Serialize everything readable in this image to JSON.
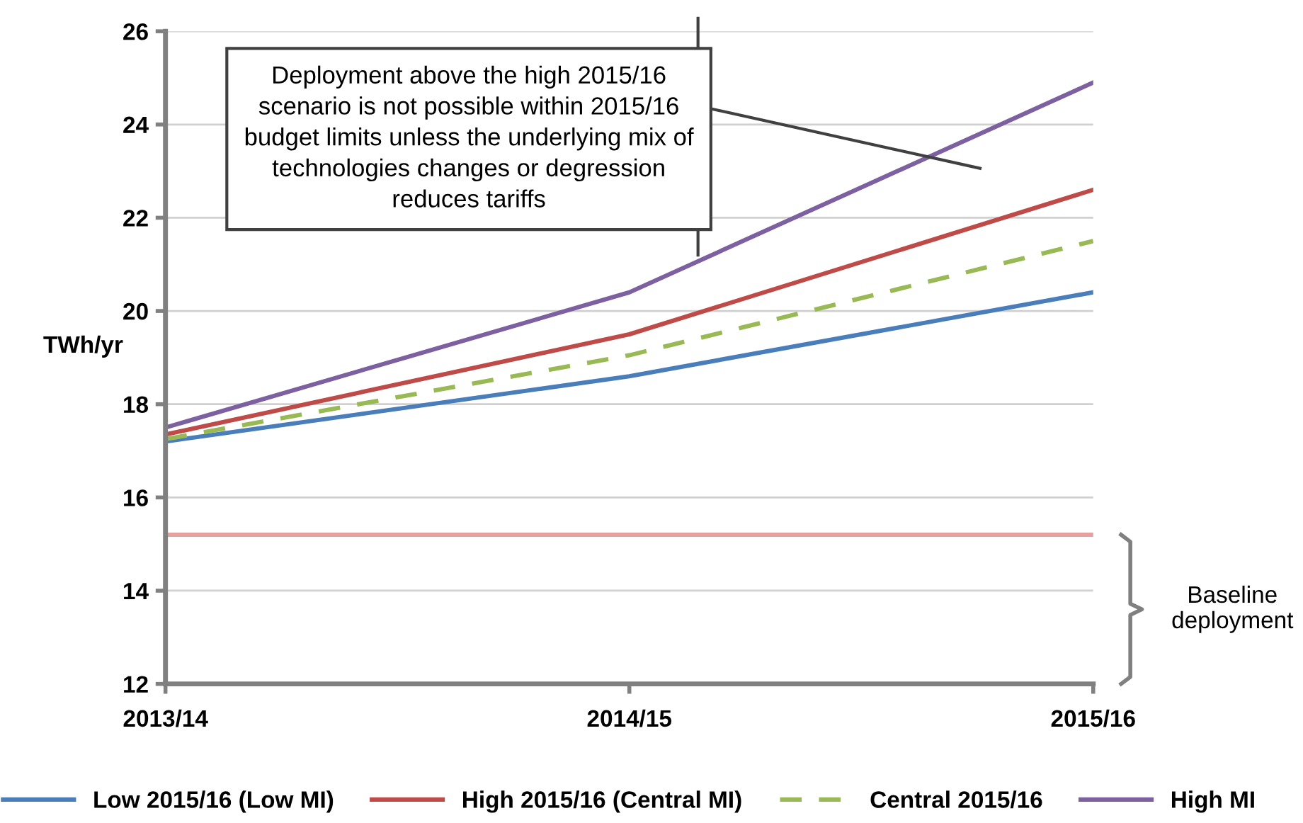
{
  "chart_data": {
    "type": "line",
    "ylabel": "TWh/yr",
    "categories": [
      "2013/14",
      "2014/15",
      "2015/16"
    ],
    "ylim": [
      12,
      26
    ],
    "yticks": [
      12,
      14,
      16,
      18,
      20,
      22,
      24,
      26
    ],
    "grid": "y",
    "legend": "bottom",
    "marker": "none",
    "series": [
      {
        "name": "Low 2015/16 (Low MI)",
        "color": "#4a7ebb",
        "values": [
          17.2,
          18.6,
          20.4
        ]
      },
      {
        "name": "High 2015/16 (Central MI)",
        "color": "#be4b48",
        "values": [
          17.35,
          19.5,
          22.6
        ]
      },
      {
        "name": "Central 2015/16",
        "color": "#98b954",
        "values": [
          17.25,
          19.05,
          21.5
        ],
        "line_style": "dashed"
      },
      {
        "name": "High MI",
        "color": "#7d60a0",
        "values": [
          17.5,
          20.4,
          24.9
        ]
      }
    ],
    "ref_lines": [
      {
        "axis": "y",
        "value": 15.2,
        "color": "#e6a0a0"
      }
    ],
    "annotations": [
      "Deployment above the high 2015/16 scenario is not possible within 2015/16 budget limits unless the underlying mix of technologies changes or degression reduces tariffs",
      "Baseline deployment"
    ]
  }
}
